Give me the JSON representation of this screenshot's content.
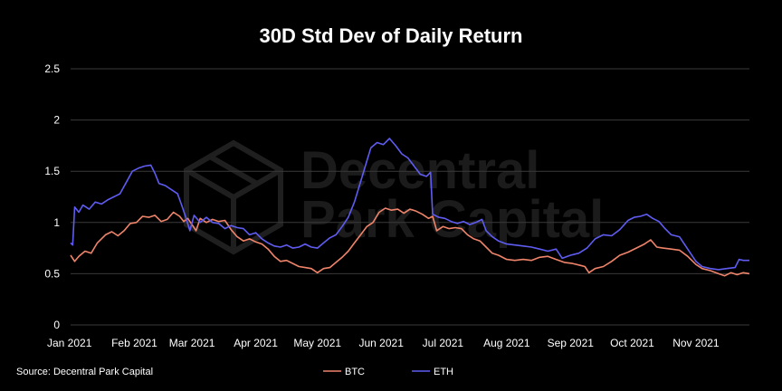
{
  "watermark": {
    "line1": "Decentral",
    "line2": "Park Capital"
  },
  "chart_data": {
    "type": "line",
    "title": "30D Std Dev of Daily Return",
    "xlabel": "",
    "ylabel": "",
    "ylim": [
      0,
      2.5
    ],
    "yticks": [
      0,
      0.5,
      1,
      1.5,
      2,
      2.5
    ],
    "ytick_labels": [
      "0",
      "0.5",
      "1",
      "1.5",
      "2",
      "2.5"
    ],
    "xlim": [
      "2021-01-01",
      "2021-11-27"
    ],
    "xticks": [
      "2021-01-01",
      "2021-02-01",
      "2021-03-01",
      "2021-04-01",
      "2021-05-01",
      "2021-06-01",
      "2021-07-01",
      "2021-08-01",
      "2021-09-01",
      "2021-10-01",
      "2021-11-01"
    ],
    "xtick_labels": [
      "Jan 2021",
      "Feb 2021",
      "Mar 2021",
      "Apr 2021",
      "May 2021",
      "Jun 2021",
      "Jul 2021",
      "Aug 2021",
      "Sep 2021",
      "Oct 2021",
      "Nov 2021"
    ],
    "grid": true,
    "legend_position": "bottom-center",
    "source": "Source: Decentral Park Capital",
    "series": [
      {
        "name": "BTC",
        "color": "#f0846a",
        "points": [
          [
            "2021-01-01",
            0.68
          ],
          [
            "2021-01-03",
            0.62
          ],
          [
            "2021-01-05",
            0.67
          ],
          [
            "2021-01-08",
            0.72
          ],
          [
            "2021-01-11",
            0.7
          ],
          [
            "2021-01-14",
            0.8
          ],
          [
            "2021-01-18",
            0.88
          ],
          [
            "2021-01-21",
            0.91
          ],
          [
            "2021-01-24",
            0.87
          ],
          [
            "2021-01-27",
            0.92
          ],
          [
            "2021-01-30",
            0.99
          ],
          [
            "2021-02-02",
            1.0
          ],
          [
            "2021-02-05",
            1.06
          ],
          [
            "2021-02-08",
            1.05
          ],
          [
            "2021-02-11",
            1.07
          ],
          [
            "2021-02-14",
            1.01
          ],
          [
            "2021-02-17",
            1.03
          ],
          [
            "2021-02-20",
            1.1
          ],
          [
            "2021-02-23",
            1.06
          ],
          [
            "2021-02-25",
            1.01
          ],
          [
            "2021-02-27",
            1.04
          ],
          [
            "2021-03-01",
            0.98
          ],
          [
            "2021-03-03",
            0.92
          ],
          [
            "2021-03-05",
            1.04
          ],
          [
            "2021-03-08",
            1.0
          ],
          [
            "2021-03-11",
            1.03
          ],
          [
            "2021-03-14",
            1.01
          ],
          [
            "2021-03-17",
            1.02
          ],
          [
            "2021-03-20",
            0.93
          ],
          [
            "2021-03-23",
            0.86
          ],
          [
            "2021-03-26",
            0.82
          ],
          [
            "2021-03-29",
            0.84
          ],
          [
            "2021-04-01",
            0.81
          ],
          [
            "2021-04-04",
            0.79
          ],
          [
            "2021-04-07",
            0.74
          ],
          [
            "2021-04-10",
            0.67
          ],
          [
            "2021-04-13",
            0.62
          ],
          [
            "2021-04-16",
            0.63
          ],
          [
            "2021-04-19",
            0.6
          ],
          [
            "2021-04-22",
            0.57
          ],
          [
            "2021-04-25",
            0.56
          ],
          [
            "2021-04-28",
            0.55
          ],
          [
            "2021-05-01",
            0.51
          ],
          [
            "2021-05-04",
            0.55
          ],
          [
            "2021-05-07",
            0.56
          ],
          [
            "2021-05-10",
            0.61
          ],
          [
            "2021-05-13",
            0.66
          ],
          [
            "2021-05-16",
            0.72
          ],
          [
            "2021-05-19",
            0.8
          ],
          [
            "2021-05-22",
            0.88
          ],
          [
            "2021-05-25",
            0.96
          ],
          [
            "2021-05-28",
            1.0
          ],
          [
            "2021-05-31",
            1.1
          ],
          [
            "2021-06-03",
            1.14
          ],
          [
            "2021-06-06",
            1.12
          ],
          [
            "2021-06-09",
            1.13
          ],
          [
            "2021-06-12",
            1.09
          ],
          [
            "2021-06-15",
            1.13
          ],
          [
            "2021-06-18",
            1.11
          ],
          [
            "2021-06-21",
            1.08
          ],
          [
            "2021-06-24",
            1.04
          ],
          [
            "2021-06-26",
            1.06
          ],
          [
            "2021-06-28",
            0.92
          ],
          [
            "2021-07-01",
            0.96
          ],
          [
            "2021-07-04",
            0.94
          ],
          [
            "2021-07-07",
            0.95
          ],
          [
            "2021-07-10",
            0.94
          ],
          [
            "2021-07-13",
            0.88
          ],
          [
            "2021-07-16",
            0.84
          ],
          [
            "2021-07-19",
            0.82
          ],
          [
            "2021-07-22",
            0.76
          ],
          [
            "2021-07-25",
            0.7
          ],
          [
            "2021-07-28",
            0.68
          ],
          [
            "2021-08-01",
            0.64
          ],
          [
            "2021-08-05",
            0.63
          ],
          [
            "2021-08-09",
            0.64
          ],
          [
            "2021-08-13",
            0.63
          ],
          [
            "2021-08-17",
            0.66
          ],
          [
            "2021-08-21",
            0.67
          ],
          [
            "2021-08-25",
            0.64
          ],
          [
            "2021-08-29",
            0.61
          ],
          [
            "2021-09-02",
            0.6
          ],
          [
            "2021-09-06",
            0.58
          ],
          [
            "2021-09-08",
            0.57
          ],
          [
            "2021-09-10",
            0.51
          ],
          [
            "2021-09-13",
            0.55
          ],
          [
            "2021-09-17",
            0.57
          ],
          [
            "2021-09-21",
            0.62
          ],
          [
            "2021-09-25",
            0.68
          ],
          [
            "2021-09-29",
            0.71
          ],
          [
            "2021-10-03",
            0.75
          ],
          [
            "2021-10-07",
            0.79
          ],
          [
            "2021-10-10",
            0.83
          ],
          [
            "2021-10-13",
            0.76
          ],
          [
            "2021-10-16",
            0.75
          ],
          [
            "2021-10-20",
            0.74
          ],
          [
            "2021-10-24",
            0.73
          ],
          [
            "2021-10-28",
            0.67
          ],
          [
            "2021-11-01",
            0.59
          ],
          [
            "2021-11-04",
            0.55
          ],
          [
            "2021-11-08",
            0.53
          ],
          [
            "2021-11-12",
            0.5
          ],
          [
            "2021-11-15",
            0.48
          ],
          [
            "2021-11-18",
            0.51
          ],
          [
            "2021-11-21",
            0.49
          ],
          [
            "2021-11-24",
            0.51
          ],
          [
            "2021-11-27",
            0.5
          ]
        ]
      },
      {
        "name": "ETH",
        "color": "#5f5cf2",
        "points": [
          [
            "2021-01-01",
            0.8
          ],
          [
            "2021-01-02",
            0.78
          ],
          [
            "2021-01-03",
            1.15
          ],
          [
            "2021-01-05",
            1.1
          ],
          [
            "2021-01-07",
            1.17
          ],
          [
            "2021-01-10",
            1.13
          ],
          [
            "2021-01-13",
            1.2
          ],
          [
            "2021-01-16",
            1.18
          ],
          [
            "2021-01-19",
            1.22
          ],
          [
            "2021-01-22",
            1.25
          ],
          [
            "2021-01-25",
            1.28
          ],
          [
            "2021-01-28",
            1.39
          ],
          [
            "2021-01-31",
            1.5
          ],
          [
            "2021-02-03",
            1.53
          ],
          [
            "2021-02-06",
            1.55
          ],
          [
            "2021-02-09",
            1.56
          ],
          [
            "2021-02-11",
            1.48
          ],
          [
            "2021-02-13",
            1.38
          ],
          [
            "2021-02-16",
            1.36
          ],
          [
            "2021-02-19",
            1.32
          ],
          [
            "2021-02-22",
            1.28
          ],
          [
            "2021-02-24",
            1.17
          ],
          [
            "2021-02-26",
            1.05
          ],
          [
            "2021-02-28",
            0.92
          ],
          [
            "2021-03-02",
            1.07
          ],
          [
            "2021-03-05",
            1.0
          ],
          [
            "2021-03-08",
            1.05
          ],
          [
            "2021-03-11",
            1.0
          ],
          [
            "2021-03-14",
            0.99
          ],
          [
            "2021-03-17",
            0.94
          ],
          [
            "2021-03-20",
            0.97
          ],
          [
            "2021-03-23",
            0.95
          ],
          [
            "2021-03-26",
            0.94
          ],
          [
            "2021-03-29",
            0.88
          ],
          [
            "2021-04-01",
            0.9
          ],
          [
            "2021-04-04",
            0.84
          ],
          [
            "2021-04-07",
            0.8
          ],
          [
            "2021-04-10",
            0.77
          ],
          [
            "2021-04-13",
            0.76
          ],
          [
            "2021-04-16",
            0.78
          ],
          [
            "2021-04-19",
            0.75
          ],
          [
            "2021-04-22",
            0.76
          ],
          [
            "2021-04-25",
            0.79
          ],
          [
            "2021-04-28",
            0.76
          ],
          [
            "2021-05-01",
            0.75
          ],
          [
            "2021-05-04",
            0.8
          ],
          [
            "2021-05-07",
            0.85
          ],
          [
            "2021-05-10",
            0.88
          ],
          [
            "2021-05-13",
            0.96
          ],
          [
            "2021-05-16",
            1.05
          ],
          [
            "2021-05-19",
            1.2
          ],
          [
            "2021-05-22",
            1.4
          ],
          [
            "2021-05-25",
            1.6
          ],
          [
            "2021-05-27",
            1.73
          ],
          [
            "2021-05-30",
            1.78
          ],
          [
            "2021-06-02",
            1.76
          ],
          [
            "2021-06-05",
            1.82
          ],
          [
            "2021-06-08",
            1.75
          ],
          [
            "2021-06-11",
            1.67
          ],
          [
            "2021-06-14",
            1.63
          ],
          [
            "2021-06-17",
            1.55
          ],
          [
            "2021-06-20",
            1.47
          ],
          [
            "2021-06-23",
            1.45
          ],
          [
            "2021-06-25",
            1.49
          ],
          [
            "2021-06-26",
            1.08
          ],
          [
            "2021-06-29",
            1.05
          ],
          [
            "2021-07-02",
            1.04
          ],
          [
            "2021-07-05",
            1.01
          ],
          [
            "2021-07-08",
            0.99
          ],
          [
            "2021-07-11",
            1.01
          ],
          [
            "2021-07-14",
            0.98
          ],
          [
            "2021-07-17",
            1.0
          ],
          [
            "2021-07-20",
            1.03
          ],
          [
            "2021-07-22",
            0.92
          ],
          [
            "2021-07-25",
            0.86
          ],
          [
            "2021-07-28",
            0.82
          ],
          [
            "2021-08-01",
            0.79
          ],
          [
            "2021-08-05",
            0.78
          ],
          [
            "2021-08-09",
            0.77
          ],
          [
            "2021-08-13",
            0.76
          ],
          [
            "2021-08-17",
            0.74
          ],
          [
            "2021-08-21",
            0.72
          ],
          [
            "2021-08-25",
            0.74
          ],
          [
            "2021-08-28",
            0.65
          ],
          [
            "2021-09-01",
            0.68
          ],
          [
            "2021-09-05",
            0.7
          ],
          [
            "2021-09-09",
            0.75
          ],
          [
            "2021-09-13",
            0.84
          ],
          [
            "2021-09-17",
            0.88
          ],
          [
            "2021-09-21",
            0.87
          ],
          [
            "2021-09-25",
            0.93
          ],
          [
            "2021-09-29",
            1.02
          ],
          [
            "2021-10-02",
            1.05
          ],
          [
            "2021-10-05",
            1.06
          ],
          [
            "2021-10-08",
            1.08
          ],
          [
            "2021-10-11",
            1.04
          ],
          [
            "2021-10-14",
            1.01
          ],
          [
            "2021-10-17",
            0.94
          ],
          [
            "2021-10-20",
            0.88
          ],
          [
            "2021-10-24",
            0.86
          ],
          [
            "2021-10-28",
            0.74
          ],
          [
            "2021-11-01",
            0.62
          ],
          [
            "2021-11-04",
            0.57
          ],
          [
            "2021-11-08",
            0.55
          ],
          [
            "2021-11-12",
            0.54
          ],
          [
            "2021-11-16",
            0.55
          ],
          [
            "2021-11-20",
            0.56
          ],
          [
            "2021-11-22",
            0.64
          ],
          [
            "2021-11-24",
            0.63
          ],
          [
            "2021-11-27",
            0.63
          ]
        ]
      }
    ]
  }
}
